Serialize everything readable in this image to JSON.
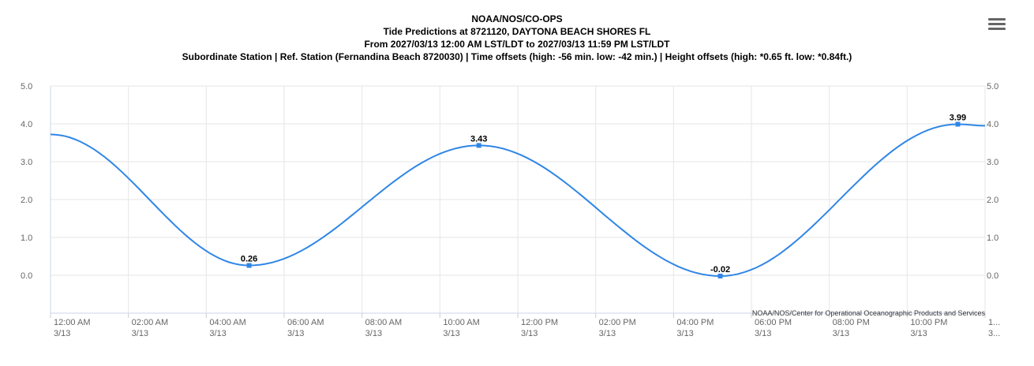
{
  "header": {
    "title_lines": [
      "NOAA/NOS/CO-OPS",
      "Tide Predictions at 8721120, DAYTONA BEACH SHORES FL",
      "From 2027/03/13 12:00 AM LST/LDT to 2027/03/13 11:59 PM LST/LDT",
      "Subordinate Station | Ref. Station (Fernandina Beach 8720030) | Time offsets (high: -56 min. low: -42 min.) | Height offsets (high: *0.65 ft. low: *0.84ft.)"
    ],
    "menu_icon": "hamburger-menu-icon"
  },
  "credit": "NOAA/NOS/Center for Operational Oceanographic Products and Services",
  "colors": {
    "series": "#2f86e6",
    "grid": "#e6e6e6",
    "axis_text": "#666666"
  },
  "chart_data": {
    "type": "line",
    "title": "",
    "xlabel": "",
    "ylabel": "",
    "xlim_hours": [
      0,
      24
    ],
    "ylim": [
      -1,
      5
    ],
    "y_ticks": [
      "5.0",
      "4.0",
      "3.0",
      "2.0",
      "1.0",
      "0.0"
    ],
    "y_tick_values": [
      5,
      4,
      3,
      2,
      1,
      0
    ],
    "x_ticks": [
      {
        "time": "12:00 AM",
        "date": "3/13"
      },
      {
        "time": "02:00 AM",
        "date": "3/13"
      },
      {
        "time": "04:00 AM",
        "date": "3/13"
      },
      {
        "time": "06:00 AM",
        "date": "3/13"
      },
      {
        "time": "08:00 AM",
        "date": "3/13"
      },
      {
        "time": "10:00 AM",
        "date": "3/13"
      },
      {
        "time": "12:00 PM",
        "date": "3/13"
      },
      {
        "time": "02:00 PM",
        "date": "3/13"
      },
      {
        "time": "04:00 PM",
        "date": "3/13"
      },
      {
        "time": "06:00 PM",
        "date": "3/13"
      },
      {
        "time": "08:00 PM",
        "date": "3/13"
      },
      {
        "time": "10:00 PM",
        "date": "3/13"
      },
      {
        "time": "1...",
        "date": "3..."
      }
    ],
    "x_tick_hours": [
      0,
      2,
      4,
      6,
      8,
      10,
      12,
      14,
      16,
      18,
      20,
      22,
      24
    ],
    "series": [
      {
        "extremes": [
          {
            "hour": 0.0,
            "value": 3.72,
            "type": "start"
          },
          {
            "hour": 5.1,
            "value": 0.26,
            "type": "L",
            "label": "0.26"
          },
          {
            "hour": 11.0,
            "value": 3.43,
            "type": "H",
            "label": "3.43"
          },
          {
            "hour": 17.2,
            "value": -0.02,
            "type": "L",
            "label": "-0.02"
          },
          {
            "hour": 23.3,
            "value": 3.99,
            "type": "H",
            "label": "3.99"
          },
          {
            "hour": 24.0,
            "value": 3.95,
            "type": "end"
          }
        ]
      }
    ]
  }
}
